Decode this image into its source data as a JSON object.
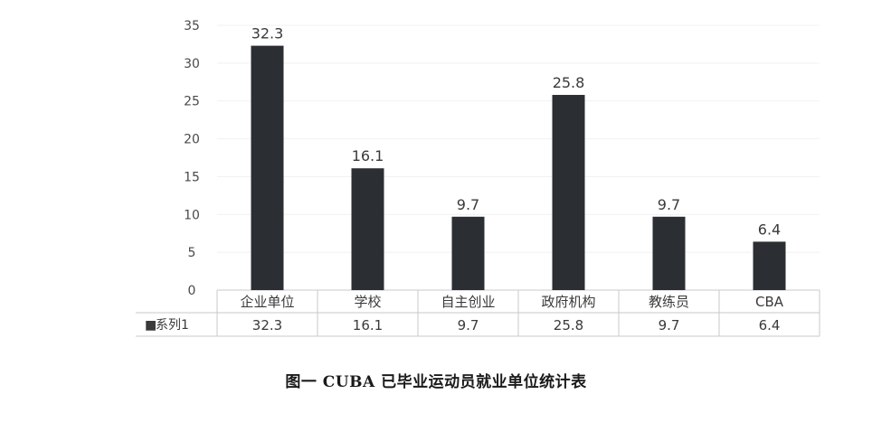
{
  "chart_data": {
    "type": "bar",
    "categories": [
      "企业单位",
      "学校",
      "自主创业",
      "政府机构",
      "教练员",
      "CBA"
    ],
    "series": [
      {
        "name": "系列1",
        "values": [
          32.3,
          16.1,
          9.7,
          25.8,
          9.7,
          6.4
        ]
      }
    ],
    "data_labels": [
      "32.3",
      "16.1",
      "9.7",
      "25.8",
      "9.7",
      "6.4"
    ],
    "table_values": [
      "32.3",
      "16.1",
      "9.7",
      "25.8",
      "9.7",
      "6.4"
    ],
    "ylim": [
      0,
      35
    ],
    "yticks": [
      0,
      5,
      10,
      15,
      20,
      25,
      30,
      35
    ],
    "ytick_labels": [
      "0",
      "5",
      "10",
      "15",
      "20",
      "25",
      "30",
      "35"
    ],
    "legend_marker": "■",
    "bar_color": "#2b2e33",
    "grid": false,
    "data_table": true,
    "title": "",
    "xlabel": "",
    "ylabel": ""
  },
  "caption": "图一 CUBA 已毕业运动员就业单位统计表"
}
